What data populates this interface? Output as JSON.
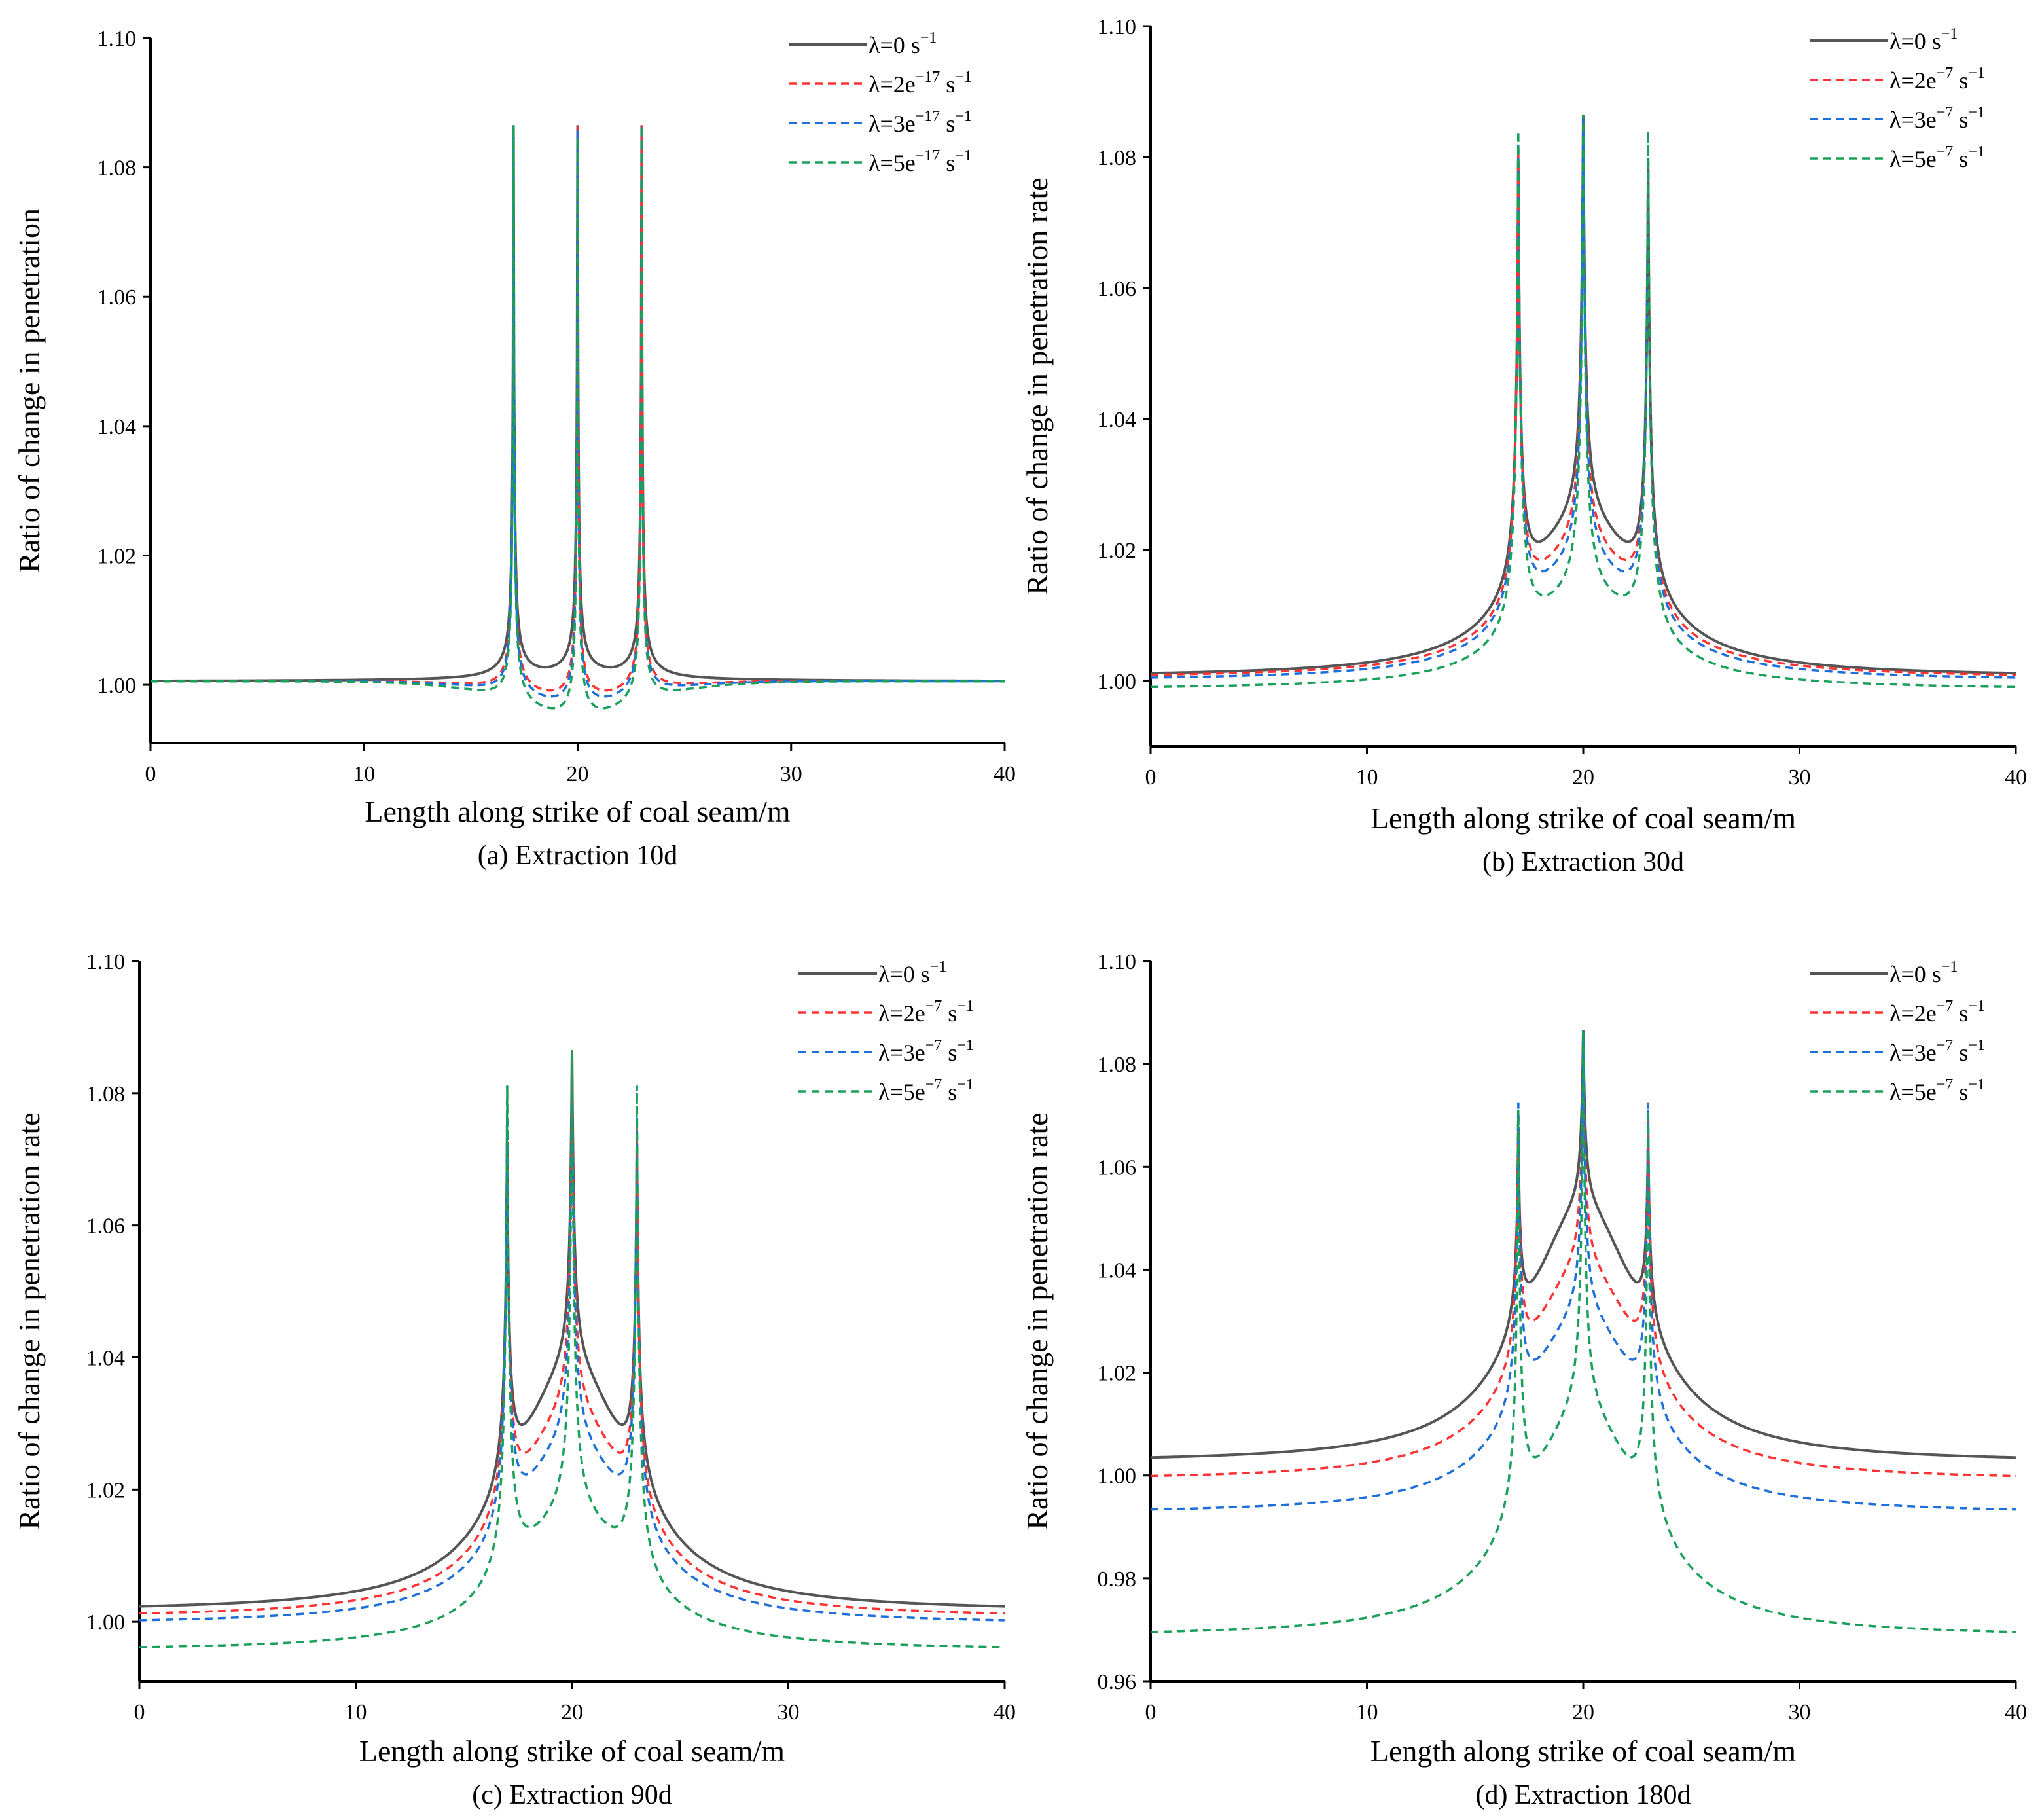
{
  "figure": {
    "colors": {
      "lambda0": "#555555",
      "lambda2": "#ff3333",
      "lambda3": "#1f6fdb",
      "lambda5": "#1aa05a",
      "axis": "#000000"
    }
  },
  "chart_data": [
    {
      "type": "line",
      "caption": "(a)  Extraction 10d",
      "xlabel": "Length along strike of coal seam/m",
      "ylabel": "Ratio of change in penetration",
      "xlim": [
        0,
        40
      ],
      "ylim": [
        0.991,
        1.1
      ],
      "xticks": [
        0,
        10,
        20,
        30,
        40
      ],
      "yticks": [
        1.0,
        1.02,
        1.04,
        1.06,
        1.08,
        1.1
      ],
      "ytick_labels": [
        "1.00",
        "1.02",
        "1.04",
        "1.06",
        "1.08",
        "1.10"
      ],
      "xtick_labels": [
        "0",
        "10",
        "20",
        "30",
        "40"
      ],
      "peaks_x": [
        17,
        20,
        23
      ],
      "series": [
        {
          "name": "λ=0 s",
          "exp": "−1",
          "style": "solid",
          "color": "#555555",
          "base": 1.0005,
          "valley": 1.0005,
          "dip": 0.0,
          "fringe": 0.0012,
          "peak": 1.0865,
          "width": 0.04
        },
        {
          "name": "λ=2e",
          "exp": "−17",
          "unit": " s",
          "unit_exp": "−1",
          "style": "dashed",
          "color": "#ff3333",
          "base": 1.0005,
          "valley": 0.998,
          "dip": 0.0015,
          "fringe": 0.0005,
          "peak": 1.0865,
          "width": 0.04
        },
        {
          "name": "λ=3e",
          "exp": "−17",
          "unit": " s",
          "unit_exp": "−1",
          "style": "dashed",
          "color": "#1f6fdb",
          "base": 1.0005,
          "valley": 0.9975,
          "dip": 0.002,
          "fringe": 0.0004,
          "peak": 1.0865,
          "width": 0.04
        },
        {
          "name": "λ=5e",
          "exp": "−17",
          "unit": " s",
          "unit_exp": "−1",
          "style": "dashed",
          "color": "#1aa05a",
          "base": 1.0005,
          "valley": 0.9965,
          "dip": 0.003,
          "fringe": 0.0003,
          "peak": 1.0865,
          "width": 0.04
        }
      ]
    },
    {
      "type": "line",
      "caption": "(b) Extraction 30d",
      "xlabel": "Length along strike of coal seam/m",
      "ylabel": "Ratio of change in penetration rate",
      "xlim": [
        0,
        40
      ],
      "ylim": [
        0.99,
        1.1
      ],
      "xticks": [
        0,
        10,
        20,
        30,
        40
      ],
      "yticks": [
        1.0,
        1.02,
        1.04,
        1.06,
        1.08,
        1.1
      ],
      "ytick_labels": [
        "1.00",
        "1.02",
        "1.04",
        "1.06",
        "1.08",
        "1.10"
      ],
      "xtick_labels": [
        "0",
        "10",
        "20",
        "30",
        "40"
      ],
      "peaks_x": [
        17,
        20,
        23
      ],
      "series": [
        {
          "name": "λ=0 s",
          "exp": "−1",
          "style": "solid",
          "color": "#555555",
          "base": 1.0005,
          "valley": 1.0198,
          "dip": 0.0,
          "fringe": 0.0,
          "peak": 1.0865,
          "width": 0.12
        },
        {
          "name": "λ=2e",
          "exp": "−7",
          "unit": " s",
          "unit_exp": "−1",
          "style": "dashed",
          "color": "#ff3333",
          "base": 1.0003,
          "valley": 1.0155,
          "dip": 0.0,
          "fringe": 0.0,
          "peak": 1.0865,
          "width": 0.12
        },
        {
          "name": "λ=3e",
          "exp": "−7",
          "unit": " s",
          "unit_exp": "−1",
          "style": "dashed",
          "color": "#1f6fdb",
          "base": 0.9999,
          "valley": 1.013,
          "dip": 0.0,
          "fringe": 0.0,
          "peak": 1.0865,
          "width": 0.12
        },
        {
          "name": "λ=5e",
          "exp": "−7",
          "unit": " s",
          "unit_exp": "−1",
          "style": "dashed",
          "color": "#1aa05a",
          "base": 0.9985,
          "valley": 1.008,
          "dip": 0.0,
          "fringe": 0.0,
          "peak": 1.0865,
          "width": 0.12
        }
      ]
    },
    {
      "type": "line",
      "caption": "(c) Extraction 90d",
      "xlabel": "Length along strike of coal seam/m",
      "ylabel": "Ratio of change in penetration rate",
      "xlim": [
        0,
        40
      ],
      "ylim": [
        0.991,
        1.1
      ],
      "xticks": [
        0,
        10,
        20,
        30,
        40
      ],
      "yticks": [
        1.0,
        1.02,
        1.04,
        1.06,
        1.08,
        1.1
      ],
      "ytick_labels": [
        "1.00",
        "1.02",
        "1.04",
        "1.06",
        "1.08",
        "1.10"
      ],
      "xtick_labels": [
        "0",
        "10",
        "20",
        "30",
        "40"
      ],
      "peaks_x": [
        17,
        20,
        23
      ],
      "series": [
        {
          "name": "λ=0 s",
          "exp": "−1",
          "style": "solid",
          "color": "#555555",
          "base": 1.0015,
          "valley": 1.034,
          "dip": 0.0,
          "fringe": 0.0,
          "peak": 1.0865,
          "width": 0.12
        },
        {
          "name": "λ=2e",
          "exp": "−7",
          "unit": " s",
          "unit_exp": "−1",
          "style": "dashed",
          "color": "#ff3333",
          "base": 1.0005,
          "valley": 1.027,
          "dip": 0.0,
          "fringe": 0.0,
          "peak": 1.0865,
          "width": 0.12
        },
        {
          "name": "λ=3e",
          "exp": "−7",
          "unit": " s",
          "unit_exp": "−1",
          "style": "dashed",
          "color": "#1f6fdb",
          "base": 0.9995,
          "valley": 1.022,
          "dip": 0.0,
          "fringe": 0.0,
          "peak": 1.0865,
          "width": 0.12
        },
        {
          "name": "λ=5e",
          "exp": "−7",
          "unit": " s",
          "unit_exp": "−1",
          "style": "dashed",
          "color": "#1aa05a",
          "base": 0.9955,
          "valley": 1.011,
          "dip": 0.0,
          "fringe": 0.0,
          "peak": 1.0865,
          "width": 0.12
        }
      ]
    },
    {
      "type": "line",
      "caption": "(d) Extraction 180d",
      "xlabel": "Length along strike of coal seam/m",
      "ylabel": "Ratio of change in penetration rate",
      "xlim": [
        0,
        40
      ],
      "ylim": [
        0.96,
        1.1
      ],
      "xticks": [
        0,
        10,
        20,
        30,
        40
      ],
      "yticks": [
        0.96,
        0.98,
        1.0,
        1.02,
        1.04,
        1.06,
        1.08,
        1.1
      ],
      "ytick_labels": [
        "0.96",
        "0.98",
        "1.00",
        "1.02",
        "1.04",
        "1.06",
        "1.08",
        "1.10"
      ],
      "xtick_labels": [
        "0",
        "10",
        "20",
        "30",
        "40"
      ],
      "peaks_x": [
        17,
        20,
        23
      ],
      "series": [
        {
          "name": "λ=0 s",
          "exp": "−1",
          "style": "solid",
          "color": "#555555",
          "base": 1.0025,
          "valley": 1.0485,
          "dip": 0.0,
          "fringe": 0.0,
          "peak": 1.0865,
          "width": 0.12
        },
        {
          "name": "λ=2e",
          "exp": "−7",
          "unit": " s",
          "unit_exp": "−1",
          "style": "dashed",
          "color": "#ff3333",
          "base": 0.999,
          "valley": 1.036,
          "dip": 0.0,
          "fringe": 0.0,
          "peak": 1.0865,
          "width": 0.12
        },
        {
          "name": "λ=3e",
          "exp": "−7",
          "unit": " s",
          "unit_exp": "−1",
          "style": "dashed",
          "color": "#1f6fdb",
          "base": 0.9925,
          "valley": 1.026,
          "dip": 0.0,
          "fringe": 0.0,
          "peak": 1.0865,
          "width": 0.12
        },
        {
          "name": "λ=5e",
          "exp": "−7",
          "unit": " s",
          "unit_exp": "−1",
          "style": "dashed",
          "color": "#1aa05a",
          "base": 0.9685,
          "valley": 1.006,
          "dip": 0.0,
          "fringe": 0.0,
          "peak": 1.0865,
          "width": 0.12
        }
      ]
    }
  ]
}
